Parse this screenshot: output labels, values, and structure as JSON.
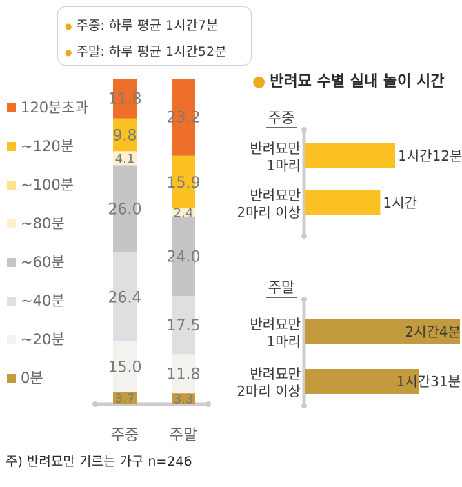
{
  "summary": {
    "weekday": "주중: 하루 평균 1시간7분",
    "weekend": "주말: 하루 평균 1시간52분"
  },
  "colors": {
    "over120": "#ee6f2a",
    "to120": "#fbc021",
    "to100": "#fde38d",
    "to80": "#fdf0cf",
    "to60": "#c5c5c5",
    "to40": "#dfdfe2",
    "to20": "#f4f2ef",
    "zero": "#c49a3e",
    "axis": "#cccccc"
  },
  "chart_data": [
    {
      "type": "bar",
      "stacked": true,
      "normalized_to_100": true,
      "categories": [
        "주중",
        "주말"
      ],
      "series": [
        {
          "name": "0분",
          "values": [
            3.7,
            3.3
          ],
          "color": "#c49a3e"
        },
        {
          "name": "~20분",
          "values": [
            15.0,
            11.8
          ],
          "color": "#f4f2ef"
        },
        {
          "name": "~40분",
          "values": [
            26.4,
            17.5
          ],
          "color": "#dfdfe2"
        },
        {
          "name": "~60분",
          "values": [
            26.0,
            24.0
          ],
          "color": "#c5c5c5"
        },
        {
          "name": "~80분",
          "values": [
            4.1,
            2.4
          ],
          "color": "#fdf0cf"
        },
        {
          "name": "~100분",
          "values": [
            0,
            0
          ],
          "color": "#fde38d"
        },
        {
          "name": "~120분",
          "values": [
            9.8,
            15.9
          ],
          "color": "#fbc021"
        },
        {
          "name": "120분초과",
          "values": [
            11.8,
            23.2
          ],
          "color": "#ee6f2a"
        }
      ],
      "legend_order": [
        "120분초과",
        "~120분",
        "~100분",
        "~80분",
        "~60분",
        "~40분",
        "~20분",
        "0분"
      ],
      "legend_position": "left",
      "footnote": "주) 반려묘만 기르는 가구 n=246"
    },
    {
      "type": "bar",
      "orientation": "horizontal",
      "title": "반려묘 수별 실내 놀이 시간",
      "panels": [
        {
          "name": "주중",
          "color": "#fbc021",
          "categories": [
            [
              "반려묘만",
              "1마리"
            ],
            [
              "반려묘만",
              "2마리 이상"
            ]
          ],
          "values": [
            72,
            60
          ],
          "value_labels": [
            "1시간12분",
            "1시간"
          ]
        },
        {
          "name": "주말",
          "color": "#c49a3e",
          "categories": [
            [
              "반려묘만",
              "1마리"
            ],
            [
              "반려묘만",
              "2마리 이상"
            ]
          ],
          "values": [
            124,
            91
          ],
          "value_labels": [
            "2시간4분",
            "1시간31분"
          ]
        }
      ],
      "value_unit": "분"
    }
  ]
}
